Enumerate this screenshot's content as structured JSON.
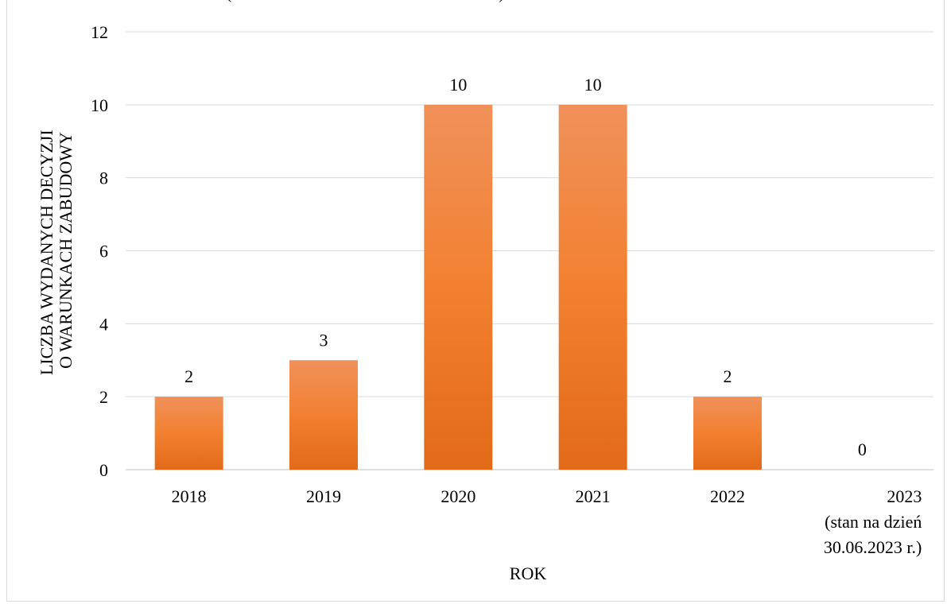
{
  "chart_data": {
    "type": "bar",
    "title": "",
    "title_fragment": "(",
    "title_fragment_right": ")",
    "xlabel": "ROK",
    "ylabel_lines": [
      "LICZBA WYDANYCH  DECYZJI",
      "O WARUNKACH ZABUDOWY"
    ],
    "categories": [
      [
        "2018"
      ],
      [
        "2019"
      ],
      [
        "2020"
      ],
      [
        "2021"
      ],
      [
        "2022"
      ],
      [
        "2023",
        "(stan na dzień",
        "30.06.2023 r.)"
      ]
    ],
    "values": [
      2,
      3,
      10,
      10,
      2,
      0
    ],
    "data_labels": [
      "2",
      "3",
      "10",
      "10",
      "2",
      "0"
    ],
    "ylim": [
      0,
      12
    ],
    "yticks": [
      0,
      2,
      4,
      6,
      8,
      10,
      12
    ],
    "grid": true,
    "legend": "none",
    "colors": {
      "bar_top": "#f0915a",
      "bar_mid": "#f28030",
      "bar_bottom": "#e26a19",
      "grid": "#d9d9d9",
      "axis": "#bfbfbf"
    }
  }
}
